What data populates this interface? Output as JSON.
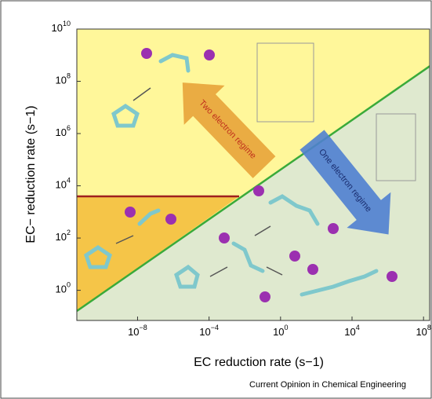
{
  "chart_data": {
    "type": "regime",
    "xlabel": "EC reduction rate (s−1)",
    "ylabel": "EC− reduction rate (s−1)",
    "log": true,
    "xlim": [
      4e-12,
      220000000.0
    ],
    "ylim": [
      0.07,
      10000000000.0
    ],
    "xticks": [
      {
        "value": 1e-08,
        "label": "10−8"
      },
      {
        "value": 0.0001,
        "label": "10−4"
      },
      {
        "value": 1,
        "label": "100"
      },
      {
        "value": 10000,
        "label": "104"
      },
      {
        "value": 100000000,
        "label": "108"
      }
    ],
    "yticks": [
      {
        "value": 1,
        "label": "100"
      },
      {
        "value": 100,
        "label": "102"
      },
      {
        "value": 10000,
        "label": "104"
      },
      {
        "value": 1000000,
        "label": "106"
      },
      {
        "value": 100000000,
        "label": "108"
      },
      {
        "value": 10000000000,
        "label": "1010"
      }
    ],
    "annotations": [
      "Two electron regime",
      "One electron regime"
    ],
    "credit": "Current Opinion in Chemical Engineering"
  }
}
